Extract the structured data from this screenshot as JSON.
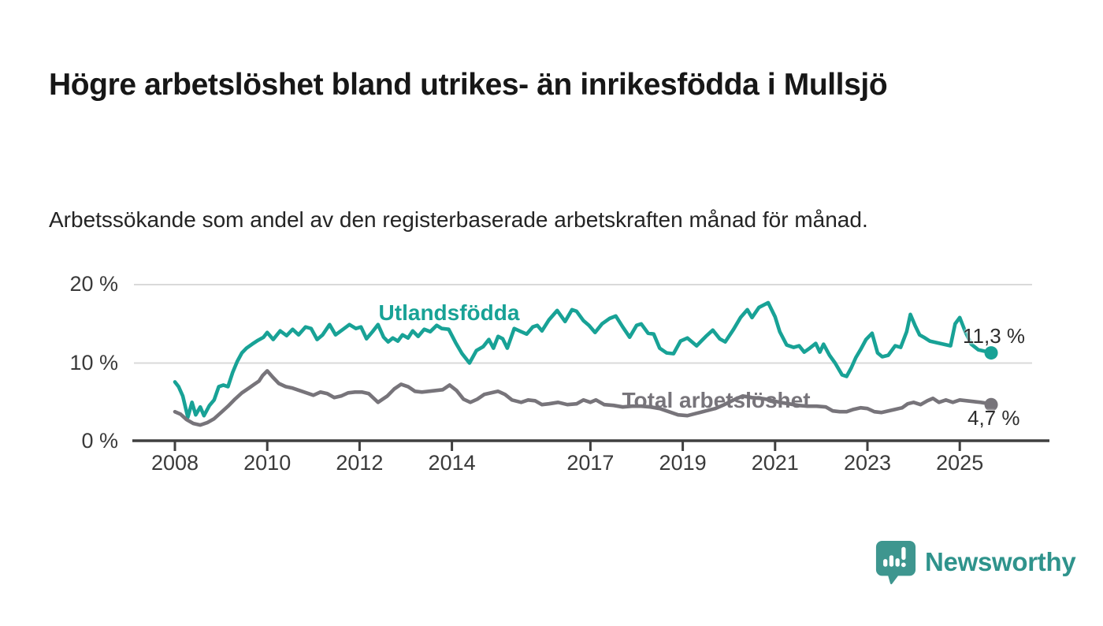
{
  "header": {
    "title": "Högre arbetslöshet bland utrikes- än inrikesfödda i Mullsjö",
    "subtitle": "Arbetssökande som andel av den registerbaserade arbetskraften månad för månad."
  },
  "footer": {
    "brand": "Newsworthy",
    "brand_color": "#2f938c",
    "icon": "speech-bubble-bar-chart-icon"
  },
  "chart_data": {
    "type": "line",
    "title": "Högre arbetslöshet bland utrikes- än inrikesfödda i Mullsjö",
    "subtitle": "Arbetssökande som andel av den registerbaserade arbetskraften månad för månad.",
    "unit": "%",
    "grid": "horizontal",
    "legend": "inline-labels",
    "x_axis": {
      "tick_labels": [
        "2008",
        "2010",
        "2012",
        "2014",
        "2017",
        "2019",
        "2021",
        "2023",
        "2025"
      ],
      "tick_years": [
        2008,
        2010,
        2012,
        2014,
        2017,
        2019,
        2021,
        2023,
        2025
      ],
      "range": [
        2007.9,
        2026.3
      ]
    },
    "y_axis": {
      "tick_labels": [
        "0 %",
        "10 %",
        "20 %"
      ],
      "tick_values": [
        0,
        10,
        20
      ],
      "gridline_values": [
        10,
        20
      ],
      "range": [
        0,
        20
      ]
    },
    "series": [
      {
        "name": "Utlandsfödda",
        "color": "#18a296",
        "end_label": "11,3 %",
        "end_value": 11.3,
        "points": [
          [
            2008.0,
            7.6
          ],
          [
            2008.08,
            7.0
          ],
          [
            2008.17,
            5.8
          ],
          [
            2008.28,
            3.1
          ],
          [
            2008.37,
            5.0
          ],
          [
            2008.45,
            3.4
          ],
          [
            2008.55,
            4.4
          ],
          [
            2008.63,
            3.3
          ],
          [
            2008.75,
            4.6
          ],
          [
            2008.85,
            5.3
          ],
          [
            2008.95,
            7.0
          ],
          [
            2009.05,
            7.2
          ],
          [
            2009.15,
            7.0
          ],
          [
            2009.25,
            8.8
          ],
          [
            2009.35,
            10.2
          ],
          [
            2009.45,
            11.3
          ],
          [
            2009.55,
            11.9
          ],
          [
            2009.67,
            12.4
          ],
          [
            2009.8,
            12.9
          ],
          [
            2009.92,
            13.3
          ],
          [
            2010.0,
            13.9
          ],
          [
            2010.13,
            13.0
          ],
          [
            2010.28,
            14.1
          ],
          [
            2010.42,
            13.5
          ],
          [
            2010.55,
            14.3
          ],
          [
            2010.68,
            13.6
          ],
          [
            2010.83,
            14.6
          ],
          [
            2010.95,
            14.4
          ],
          [
            2011.08,
            13.0
          ],
          [
            2011.2,
            13.6
          ],
          [
            2011.35,
            14.9
          ],
          [
            2011.48,
            13.6
          ],
          [
            2011.62,
            14.2
          ],
          [
            2011.78,
            14.9
          ],
          [
            2011.92,
            14.4
          ],
          [
            2012.03,
            14.6
          ],
          [
            2012.15,
            13.1
          ],
          [
            2012.28,
            14.0
          ],
          [
            2012.4,
            14.9
          ],
          [
            2012.52,
            13.3
          ],
          [
            2012.62,
            12.7
          ],
          [
            2012.72,
            13.2
          ],
          [
            2012.83,
            12.8
          ],
          [
            2012.93,
            13.6
          ],
          [
            2013.05,
            13.2
          ],
          [
            2013.15,
            14.1
          ],
          [
            2013.27,
            13.4
          ],
          [
            2013.4,
            14.3
          ],
          [
            2013.53,
            14.0
          ],
          [
            2013.67,
            14.8
          ],
          [
            2013.78,
            14.4
          ],
          [
            2013.93,
            14.3
          ],
          [
            2014.08,
            12.6
          ],
          [
            2014.22,
            11.2
          ],
          [
            2014.38,
            10.0
          ],
          [
            2014.53,
            11.6
          ],
          [
            2014.68,
            12.1
          ],
          [
            2014.8,
            13.0
          ],
          [
            2014.9,
            11.9
          ],
          [
            2015.0,
            13.4
          ],
          [
            2015.1,
            13.1
          ],
          [
            2015.2,
            11.9
          ],
          [
            2015.35,
            14.4
          ],
          [
            2015.5,
            14.0
          ],
          [
            2015.62,
            13.7
          ],
          [
            2015.75,
            14.6
          ],
          [
            2015.85,
            14.8
          ],
          [
            2015.95,
            14.1
          ],
          [
            2016.1,
            15.5
          ],
          [
            2016.28,
            16.7
          ],
          [
            2016.45,
            15.3
          ],
          [
            2016.6,
            16.8
          ],
          [
            2016.7,
            16.6
          ],
          [
            2016.85,
            15.4
          ],
          [
            2016.97,
            14.8
          ],
          [
            2017.1,
            13.9
          ],
          [
            2017.25,
            15.0
          ],
          [
            2017.42,
            15.7
          ],
          [
            2017.55,
            16.0
          ],
          [
            2017.7,
            14.6
          ],
          [
            2017.85,
            13.3
          ],
          [
            2018.0,
            14.8
          ],
          [
            2018.1,
            15.0
          ],
          [
            2018.25,
            13.8
          ],
          [
            2018.37,
            13.7
          ],
          [
            2018.5,
            11.9
          ],
          [
            2018.65,
            11.3
          ],
          [
            2018.8,
            11.2
          ],
          [
            2018.95,
            12.8
          ],
          [
            2019.1,
            13.2
          ],
          [
            2019.3,
            12.2
          ],
          [
            2019.5,
            13.4
          ],
          [
            2019.65,
            14.2
          ],
          [
            2019.8,
            13.1
          ],
          [
            2019.92,
            12.7
          ],
          [
            2020.1,
            14.3
          ],
          [
            2020.25,
            15.8
          ],
          [
            2020.4,
            16.8
          ],
          [
            2020.5,
            15.8
          ],
          [
            2020.65,
            17.1
          ],
          [
            2020.85,
            17.7
          ],
          [
            2021.0,
            15.9
          ],
          [
            2021.1,
            14.0
          ],
          [
            2021.25,
            12.3
          ],
          [
            2021.4,
            12.0
          ],
          [
            2021.52,
            12.2
          ],
          [
            2021.63,
            11.4
          ],
          [
            2021.75,
            11.9
          ],
          [
            2021.88,
            12.5
          ],
          [
            2021.97,
            11.4
          ],
          [
            2022.05,
            12.4
          ],
          [
            2022.18,
            11.0
          ],
          [
            2022.3,
            10.0
          ],
          [
            2022.45,
            8.5
          ],
          [
            2022.55,
            8.3
          ],
          [
            2022.65,
            9.4
          ],
          [
            2022.75,
            10.7
          ],
          [
            2022.85,
            11.7
          ],
          [
            2022.97,
            13.0
          ],
          [
            2023.1,
            13.8
          ],
          [
            2023.22,
            11.3
          ],
          [
            2023.32,
            10.8
          ],
          [
            2023.45,
            11.0
          ],
          [
            2023.6,
            12.2
          ],
          [
            2023.72,
            12.0
          ],
          [
            2023.85,
            14.0
          ],
          [
            2023.93,
            16.2
          ],
          [
            2024.03,
            14.8
          ],
          [
            2024.13,
            13.6
          ],
          [
            2024.22,
            13.3
          ],
          [
            2024.35,
            12.8
          ],
          [
            2024.5,
            12.6
          ],
          [
            2024.65,
            12.4
          ],
          [
            2024.8,
            12.2
          ],
          [
            2024.9,
            15.0
          ],
          [
            2025.0,
            15.8
          ],
          [
            2025.12,
            14.0
          ],
          [
            2025.25,
            12.4
          ],
          [
            2025.4,
            11.7
          ],
          [
            2025.55,
            11.5
          ],
          [
            2025.68,
            11.3
          ]
        ]
      },
      {
        "name": "Total arbetslöshet",
        "color": "#77747a",
        "end_label": "4,7 %",
        "end_value": 4.7,
        "points": [
          [
            2008.0,
            3.8
          ],
          [
            2008.12,
            3.5
          ],
          [
            2008.25,
            2.8
          ],
          [
            2008.4,
            2.3
          ],
          [
            2008.55,
            2.1
          ],
          [
            2008.7,
            2.4
          ],
          [
            2008.85,
            2.9
          ],
          [
            2009.0,
            3.7
          ],
          [
            2009.15,
            4.5
          ],
          [
            2009.3,
            5.4
          ],
          [
            2009.45,
            6.2
          ],
          [
            2009.6,
            6.8
          ],
          [
            2009.72,
            7.3
          ],
          [
            2009.82,
            7.7
          ],
          [
            2009.9,
            8.4
          ],
          [
            2010.0,
            9.0
          ],
          [
            2010.12,
            8.2
          ],
          [
            2010.25,
            7.4
          ],
          [
            2010.4,
            7.0
          ],
          [
            2010.55,
            6.8
          ],
          [
            2010.7,
            6.5
          ],
          [
            2010.85,
            6.2
          ],
          [
            2011.0,
            5.9
          ],
          [
            2011.15,
            6.3
          ],
          [
            2011.3,
            6.1
          ],
          [
            2011.45,
            5.6
          ],
          [
            2011.6,
            5.8
          ],
          [
            2011.75,
            6.2
          ],
          [
            2011.9,
            6.3
          ],
          [
            2012.05,
            6.3
          ],
          [
            2012.2,
            6.1
          ],
          [
            2012.4,
            5.0
          ],
          [
            2012.6,
            5.8
          ],
          [
            2012.75,
            6.7
          ],
          [
            2012.9,
            7.3
          ],
          [
            2013.05,
            7.0
          ],
          [
            2013.2,
            6.4
          ],
          [
            2013.35,
            6.3
          ],
          [
            2013.5,
            6.4
          ],
          [
            2013.65,
            6.5
          ],
          [
            2013.8,
            6.6
          ],
          [
            2013.95,
            7.2
          ],
          [
            2014.1,
            6.5
          ],
          [
            2014.25,
            5.4
          ],
          [
            2014.4,
            5.0
          ],
          [
            2014.55,
            5.4
          ],
          [
            2014.7,
            6.0
          ],
          [
            2014.85,
            6.2
          ],
          [
            2015.0,
            6.4
          ],
          [
            2015.15,
            6.0
          ],
          [
            2015.3,
            5.3
          ],
          [
            2015.5,
            5.0
          ],
          [
            2015.65,
            5.3
          ],
          [
            2015.8,
            5.2
          ],
          [
            2015.95,
            4.7
          ],
          [
            2016.1,
            4.8
          ],
          [
            2016.3,
            5.0
          ],
          [
            2016.5,
            4.7
          ],
          [
            2016.7,
            4.8
          ],
          [
            2016.85,
            5.3
          ],
          [
            2017.0,
            5.0
          ],
          [
            2017.12,
            5.3
          ],
          [
            2017.3,
            4.7
          ],
          [
            2017.5,
            4.6
          ],
          [
            2017.7,
            4.4
          ],
          [
            2017.9,
            4.5
          ],
          [
            2018.1,
            4.5
          ],
          [
            2018.3,
            4.4
          ],
          [
            2018.5,
            4.2
          ],
          [
            2018.7,
            3.8
          ],
          [
            2018.9,
            3.4
          ],
          [
            2019.1,
            3.3
          ],
          [
            2019.3,
            3.6
          ],
          [
            2019.5,
            3.9
          ],
          [
            2019.7,
            4.2
          ],
          [
            2019.9,
            4.7
          ],
          [
            2020.1,
            5.3
          ],
          [
            2020.3,
            5.8
          ],
          [
            2020.5,
            5.6
          ],
          [
            2020.7,
            5.5
          ],
          [
            2020.9,
            5.3
          ],
          [
            2021.1,
            5.0
          ],
          [
            2021.3,
            4.8
          ],
          [
            2021.5,
            4.6
          ],
          [
            2021.7,
            4.5
          ],
          [
            2021.9,
            4.5
          ],
          [
            2022.1,
            4.4
          ],
          [
            2022.25,
            3.9
          ],
          [
            2022.4,
            3.8
          ],
          [
            2022.55,
            3.8
          ],
          [
            2022.7,
            4.1
          ],
          [
            2022.85,
            4.3
          ],
          [
            2023.0,
            4.2
          ],
          [
            2023.15,
            3.8
          ],
          [
            2023.3,
            3.7
          ],
          [
            2023.45,
            3.9
          ],
          [
            2023.6,
            4.1
          ],
          [
            2023.75,
            4.3
          ],
          [
            2023.87,
            4.8
          ],
          [
            2024.0,
            5.0
          ],
          [
            2024.15,
            4.7
          ],
          [
            2024.3,
            5.2
          ],
          [
            2024.42,
            5.5
          ],
          [
            2024.55,
            5.0
          ],
          [
            2024.7,
            5.3
          ],
          [
            2024.85,
            5.0
          ],
          [
            2025.0,
            5.3
          ],
          [
            2025.15,
            5.2
          ],
          [
            2025.3,
            5.1
          ],
          [
            2025.45,
            5.0
          ],
          [
            2025.55,
            4.9
          ],
          [
            2025.68,
            4.7
          ]
        ]
      }
    ]
  }
}
